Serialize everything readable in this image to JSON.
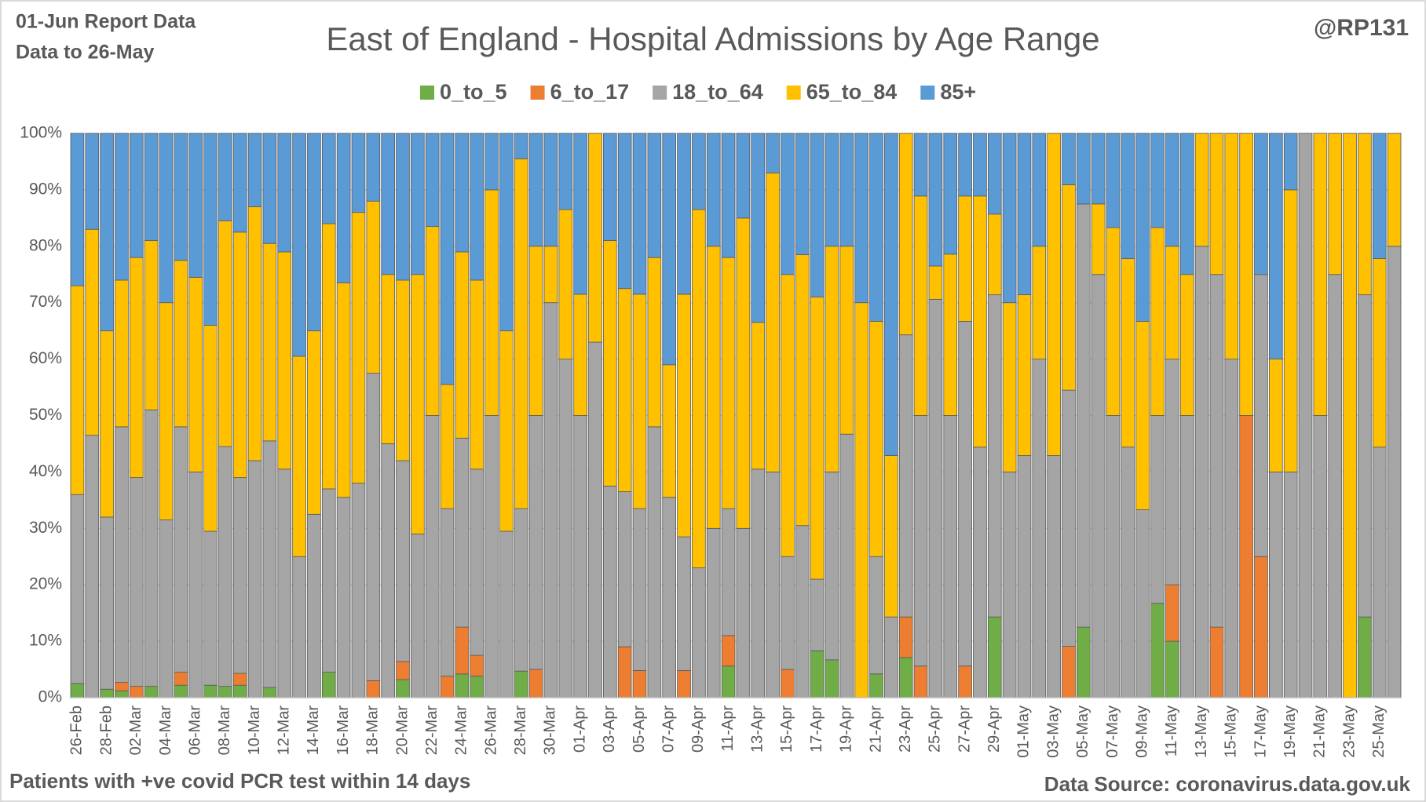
{
  "chart_data": {
    "type": "stacked_bar_100",
    "title": "East of England - Hospital Admissions by Age Range",
    "report_note": "01-Jun Report Data",
    "data_note": "Data to 26-May",
    "handle": "@RP131",
    "footnote": "Patients with  +ve covid PCR test within 14 days",
    "source": "Data Source: coronavirus.data.gov.uk",
    "categories": [
      "26-Feb",
      null,
      "28-Feb",
      null,
      "02-Mar",
      null,
      "04-Mar",
      null,
      "06-Mar",
      null,
      "08-Mar",
      null,
      "10-Mar",
      null,
      "12-Mar",
      null,
      "14-Mar",
      null,
      "16-Mar",
      null,
      "18-Mar",
      null,
      "20-Mar",
      null,
      "22-Mar",
      null,
      "24-Mar",
      null,
      "26-Mar",
      null,
      "28-Mar",
      null,
      "30-Mar",
      null,
      "01-Apr",
      null,
      "03-Apr",
      null,
      "05-Apr",
      null,
      "07-Apr",
      null,
      "09-Apr",
      null,
      "11-Apr",
      null,
      "13-Apr",
      null,
      "15-Apr",
      null,
      "17-Apr",
      null,
      "19-Apr",
      null,
      "21-Apr",
      null,
      "23-Apr",
      null,
      "25-Apr",
      null,
      "27-Apr",
      null,
      "29-Apr",
      null,
      "01-May",
      null,
      "03-May",
      null,
      "05-May",
      null,
      "07-May",
      null,
      "09-May",
      null,
      "11-May",
      null,
      "13-May",
      null,
      "15-May",
      null,
      "17-May",
      null,
      "19-May",
      null,
      "21-May",
      null,
      "23-May",
      null,
      "25-May",
      null
    ],
    "series": [
      {
        "name": "0_to_5",
        "color": "#70ad47",
        "values": [
          2.5,
          0,
          1.5,
          1.2,
          0,
          2,
          0,
          2.2,
          0,
          2.2,
          2,
          2.2,
          0,
          1.8,
          0,
          0,
          0,
          4.5,
          0,
          0,
          0,
          0,
          3.2,
          0,
          0,
          0,
          4.2,
          3.8,
          0,
          0,
          4.7,
          0,
          0,
          0,
          0,
          0,
          0,
          0,
          0,
          0,
          0,
          0,
          0,
          0,
          5.6,
          0,
          0,
          0,
          0,
          0,
          8.3,
          6.7,
          0,
          0,
          4.2,
          0,
          7.1,
          0,
          0,
          0,
          0,
          0,
          14.3,
          0,
          0,
          0,
          0,
          0,
          12.5,
          0,
          0,
          0,
          0,
          16.7,
          10,
          0,
          0,
          0,
          0,
          0,
          0,
          0,
          0,
          0,
          0,
          0,
          0,
          14.3,
          0,
          0
        ]
      },
      {
        "name": "6_to_17",
        "color": "#ed7d31",
        "values": [
          0,
          0,
          0,
          1.5,
          2,
          0,
          0,
          2.3,
          0,
          0,
          0,
          2.1,
          0,
          0,
          0,
          0,
          0,
          0,
          0,
          0,
          3,
          0,
          3.2,
          0,
          0,
          3.8,
          8.3,
          3.7,
          0,
          0,
          0,
          5,
          0,
          0,
          0,
          0,
          0,
          9,
          4.8,
          0,
          0,
          4.8,
          0,
          0,
          5.4,
          0,
          0,
          0,
          5,
          0,
          0,
          0,
          0,
          0,
          0,
          0,
          7.2,
          5.6,
          0,
          0,
          5.6,
          0,
          0,
          0,
          0,
          0,
          0,
          9.1,
          0,
          0,
          0,
          0,
          0,
          0,
          10,
          0,
          0,
          12.5,
          0,
          50,
          25,
          0,
          0,
          0,
          0,
          0,
          0,
          0,
          0,
          0
        ]
      },
      {
        "name": "18_to_64",
        "color": "#a5a5a5",
        "values": [
          33.5,
          46.5,
          30.5,
          45.3,
          37,
          49,
          31.5,
          43.5,
          40,
          27.3,
          42.5,
          34.7,
          42,
          43.7,
          40.5,
          25,
          32.5,
          32.5,
          35.5,
          38,
          54.5,
          45,
          35.6,
          29,
          50,
          29.7,
          33.5,
          33,
          50,
          29.5,
          28.8,
          45,
          70,
          60,
          50,
          63,
          37.5,
          27.5,
          28.7,
          48,
          35.5,
          23.7,
          23,
          30,
          22.5,
          30,
          40.5,
          40,
          20,
          30.5,
          12.7,
          33.3,
          46.7,
          0,
          20.8,
          14.3,
          50,
          44.4,
          70.6,
          50,
          61.1,
          44.4,
          57.1,
          40,
          42.9,
          60,
          42.9,
          45.4,
          75,
          75,
          50,
          44.4,
          33.3,
          33.3,
          40,
          50,
          80,
          62.5,
          60,
          0,
          50,
          40,
          40,
          100,
          50,
          75,
          0,
          57.1,
          44.4,
          80
        ]
      },
      {
        "name": "65_to_84",
        "color": "#ffc000",
        "values": [
          37,
          36.5,
          33,
          26,
          39,
          30,
          38.5,
          29.5,
          34.5,
          36.5,
          40,
          43.5,
          45,
          35,
          38.5,
          35.5,
          32.5,
          47,
          38,
          48,
          30.5,
          30,
          32,
          46,
          33.5,
          22,
          33,
          33.5,
          40,
          35.5,
          62,
          30,
          10,
          26.5,
          21.5,
          37,
          43.5,
          36,
          38,
          30,
          23.5,
          43,
          63.5,
          50,
          44.5,
          55,
          26,
          53,
          50,
          48,
          50,
          40,
          33.3,
          70,
          41.7,
          28.6,
          35.7,
          38.9,
          5.9,
          28.6,
          22.2,
          44.5,
          14.3,
          30,
          28.5,
          20,
          57.1,
          36.4,
          0,
          12.5,
          33.3,
          33.4,
          33.4,
          33.3,
          20,
          25,
          20,
          25,
          40,
          50,
          0,
          20,
          50,
          0,
          50,
          25,
          100,
          28.6,
          33.4,
          20
        ]
      },
      {
        "name": "85+",
        "color": "#5b9bd5",
        "values": [
          27,
          17,
          35,
          26,
          22,
          19,
          30,
          22.5,
          25.5,
          34,
          15.5,
          17.5,
          13,
          19.5,
          21,
          39.5,
          35,
          16,
          26.5,
          14,
          12,
          25,
          26,
          25,
          16.5,
          44.5,
          21,
          26,
          10,
          35,
          4.5,
          20,
          20,
          13.5,
          28.5,
          0,
          19,
          27.5,
          28.5,
          22,
          41,
          28.5,
          13.5,
          20,
          22,
          15,
          33.5,
          7,
          25,
          21.5,
          29,
          20,
          20,
          30,
          33.3,
          57.1,
          0,
          11.1,
          23.5,
          21.4,
          11.1,
          11.1,
          14.3,
          30,
          28.6,
          20,
          0,
          9.1,
          12.5,
          12.5,
          16.7,
          22.2,
          33.3,
          16.7,
          20,
          25,
          0,
          0,
          0,
          0,
          25,
          40,
          10,
          0,
          0,
          0,
          0,
          0,
          22.2,
          0
        ]
      }
    ],
    "ylim": [
      0,
      100
    ],
    "yticks": [
      {
        "value": 0,
        "label": "0%"
      },
      {
        "value": 10,
        "label": "10%"
      },
      {
        "value": 20,
        "label": "20%"
      },
      {
        "value": 30,
        "label": "30%"
      },
      {
        "value": 40,
        "label": "40%"
      },
      {
        "value": 50,
        "label": "50%"
      },
      {
        "value": 60,
        "label": "60%"
      },
      {
        "value": 70,
        "label": "70%"
      },
      {
        "value": 80,
        "label": "80%"
      },
      {
        "value": 90,
        "label": "90%"
      },
      {
        "value": 100,
        "label": "100%"
      }
    ],
    "grid": true,
    "legend": "top"
  }
}
